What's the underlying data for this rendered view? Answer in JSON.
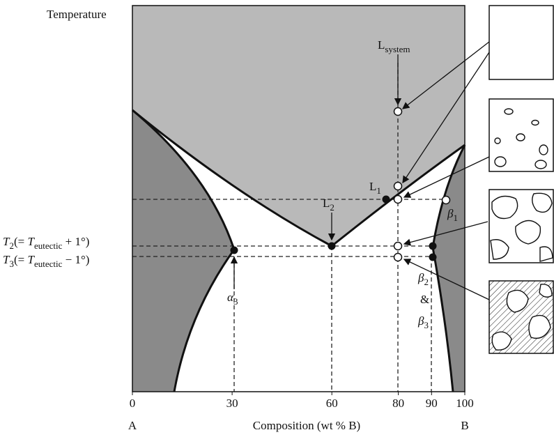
{
  "axis_labels": {
    "y": "Temperature",
    "x": "Composition (wt % B)",
    "left_end": "A",
    "right_end": "B"
  },
  "xticks": [
    0,
    30,
    60,
    80,
    90,
    100
  ],
  "labels": {
    "L_system": [
      "L",
      "system"
    ],
    "L1": [
      "L",
      "1"
    ],
    "L2": [
      "L",
      "2"
    ],
    "beta1": [
      "β",
      "1"
    ],
    "alpha3": [
      "α",
      "3"
    ],
    "beta23": [
      "β",
      "2",
      "&",
      "β",
      "3"
    ],
    "T2": [
      "T",
      "2",
      "(= ",
      "T",
      "eutectic",
      " + 1°)"
    ],
    "T3": [
      "T",
      "3",
      "(= ",
      "T",
      "eutectic",
      " − 1°)"
    ]
  }
}
